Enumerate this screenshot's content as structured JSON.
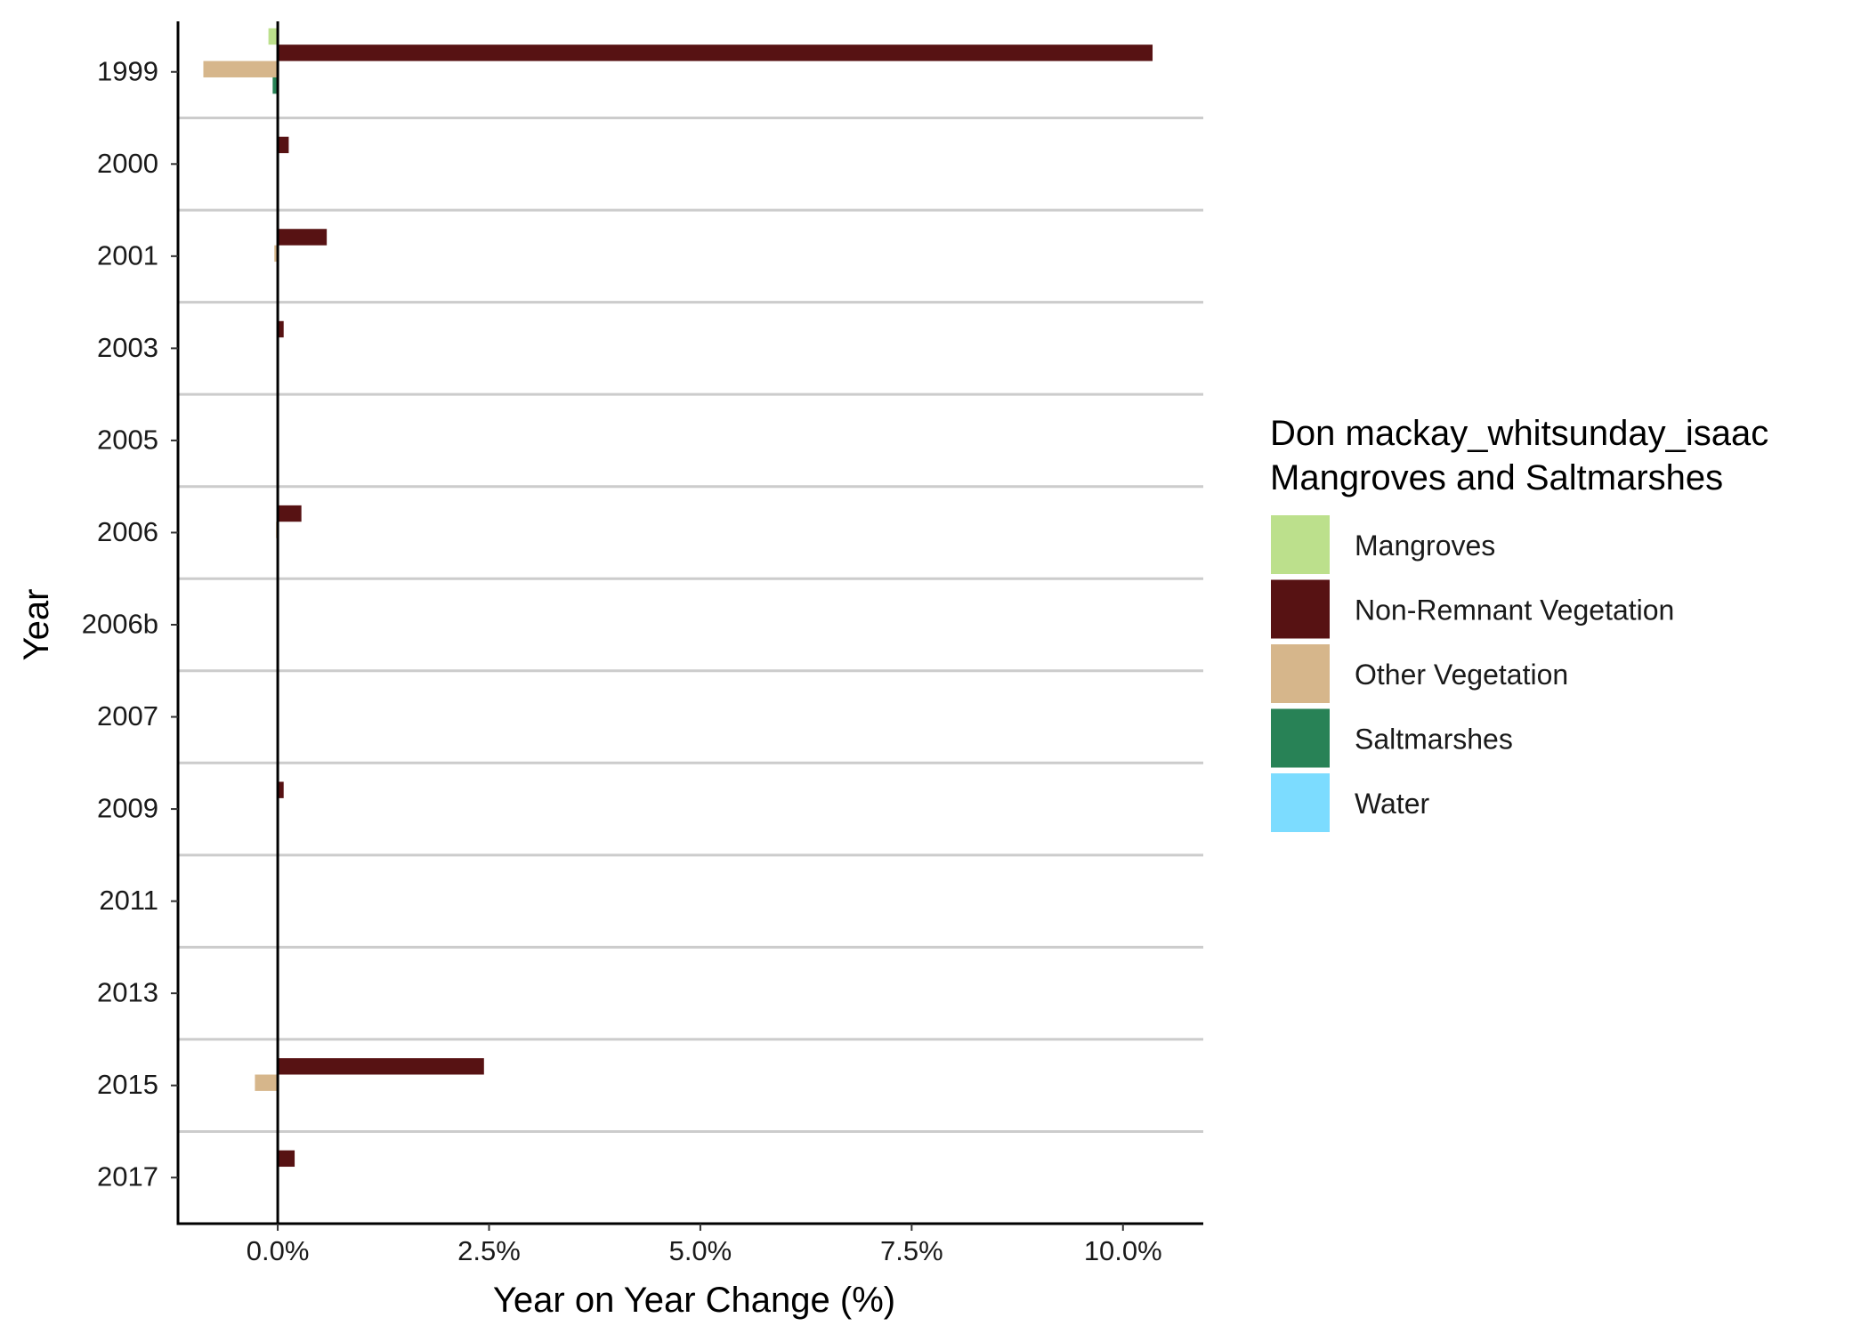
{
  "chart_data": {
    "type": "bar",
    "orientation": "horizontal",
    "categories": [
      "1999",
      "2000",
      "2001",
      "2003",
      "2005",
      "2006",
      "2006b",
      "2007",
      "2009",
      "2011",
      "2013",
      "2015",
      "2017"
    ],
    "xlabel": "Year on Year Change (%)",
    "ylabel": "Year",
    "xlim": [
      -1.18,
      10.95
    ],
    "x_ticks": [
      0,
      2.5,
      5,
      7.5,
      10
    ],
    "x_tick_labels": [
      "0.0%",
      "2.5%",
      "5.0%",
      "7.5%",
      "10.0%"
    ],
    "grid": "horizontal separators between categories",
    "legend": {
      "placement": "right",
      "title_lines": [
        "Don mackay_whitsunday_isaac",
        "Mangroves and Saltmarshes"
      ]
    },
    "series": [
      {
        "name": "Mangroves",
        "color": "#bce08c",
        "values": [
          -0.11,
          0,
          0,
          0,
          0,
          0,
          0,
          0,
          0,
          0,
          0,
          0,
          0
        ]
      },
      {
        "name": "Non-Remnant Vegetation",
        "color": "#571213",
        "values": [
          10.35,
          0.13,
          0.58,
          0.07,
          0,
          0.28,
          0,
          0,
          0.07,
          0,
          0,
          2.44,
          0.2
        ]
      },
      {
        "name": "Other Vegetation",
        "color": "#d6b68b",
        "values": [
          -0.88,
          0,
          -0.04,
          0,
          0,
          -0.02,
          0,
          0,
          0,
          0,
          0,
          -0.27,
          0
        ]
      },
      {
        "name": "Saltmarshes",
        "color": "#288256",
        "values": [
          -0.06,
          0,
          0,
          0,
          0,
          0,
          0,
          0,
          0,
          0,
          0,
          -0.01,
          0
        ]
      },
      {
        "name": "Water",
        "color": "#7cdcff",
        "values": [
          0,
          0,
          0,
          0,
          0,
          0,
          0,
          0,
          0,
          0,
          0,
          0,
          0
        ]
      }
    ]
  }
}
